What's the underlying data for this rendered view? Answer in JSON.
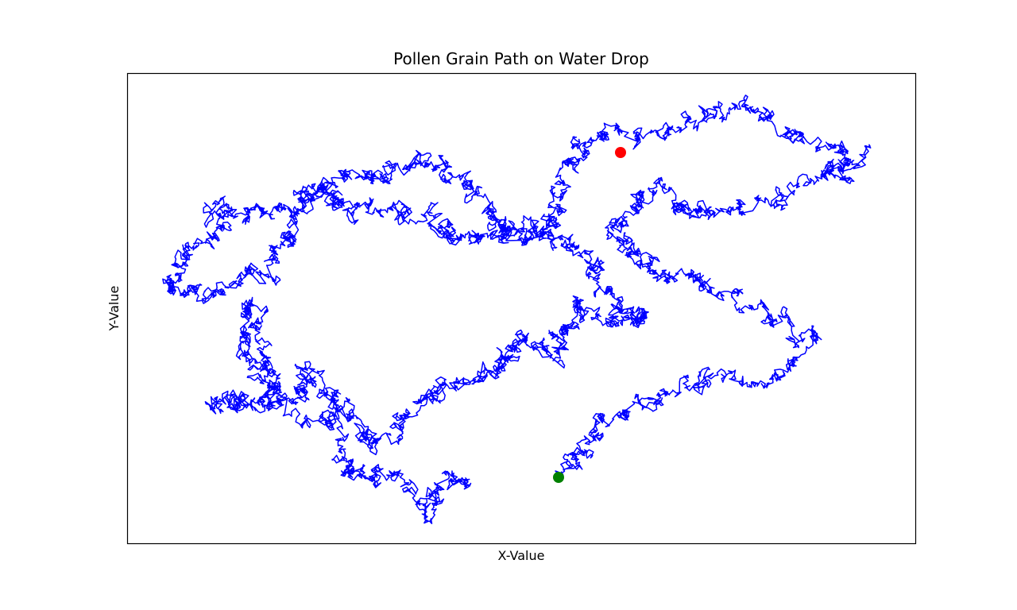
{
  "chart_data": {
    "type": "line",
    "title": "Pollen Grain Path on Water Drop",
    "xlabel": "X-Value",
    "ylabel": "Y-Value",
    "grid": false,
    "legend": "none",
    "axis_ticks_visible": false,
    "series": [
      {
        "color": "#0000ff",
        "marker": "none"
      }
    ],
    "start_marker": {
      "color": "#008000"
    },
    "end_marker": {
      "color": "#ff0000"
    }
  }
}
